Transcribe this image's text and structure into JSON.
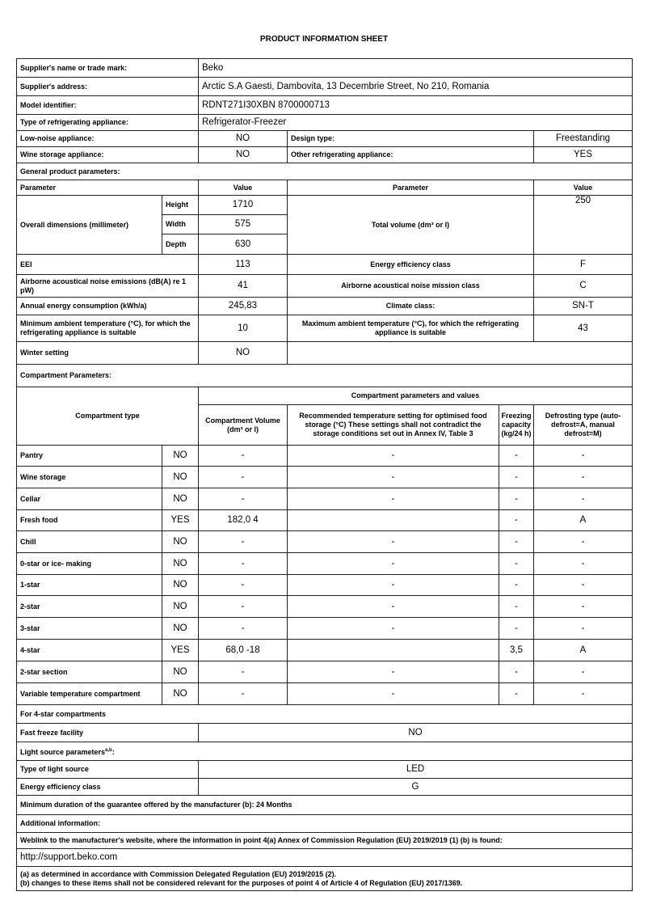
{
  "title": "PRODUCT INFORMATION SHEET",
  "supplier_name": {
    "label": "Supplier's name or trade mark:",
    "value": "Beko"
  },
  "supplier_address": {
    "label": "Supplier's address:",
    "value": "Arctic S.A  Gaesti, Dambovita, 13 Decembrie Street, No 210, Romania"
  },
  "model": {
    "label": "Model identifier:",
    "value": "RDNT271I30XBN 8700000713"
  },
  "appliance_type": {
    "label": "Type of refrigerating appliance:",
    "value": "Refrigerator-Freezer"
  },
  "low_noise": {
    "label": "Low-noise appliance:",
    "value": "NO"
  },
  "design_type": {
    "label": "Design type:",
    "value": "Freestanding"
  },
  "wine_storage": {
    "label": "Wine storage appliance:",
    "value": "NO"
  },
  "other_appliance": {
    "label": "Other refrigerating appliance:",
    "value": "YES"
  },
  "general_header": "General product parameters:",
  "param_header": {
    "parameter": "Parameter",
    "value": "Value"
  },
  "dimensions": {
    "label": "Overall dimensions (millimeter)",
    "height_label": "Height",
    "height": "1710",
    "width_label": "Width",
    "width": "575",
    "depth_label": "Depth",
    "depth": "630"
  },
  "total_volume": {
    "label": "Total volume (dm³ or l)",
    "value": "250"
  },
  "eei": {
    "label": "EEI",
    "value": "113"
  },
  "energy_class": {
    "label": "Energy efficiency class",
    "value": "F"
  },
  "noise": {
    "label": "Airborne acoustical noise emissions (dB(A) re 1 pW)",
    "value": "41"
  },
  "noise_class": {
    "label": "Airborne acoustical noise mission class",
    "value": "C"
  },
  "annual_energy": {
    "label": "Annual energy consumption (kWh/a)",
    "value": "245,83"
  },
  "climate_class": {
    "label": "Climate class:",
    "value": "SN-T"
  },
  "min_temp": {
    "label": "Minimum ambient temperature (°C), for which the refrigerating appliance is suitable",
    "value": "10"
  },
  "max_temp": {
    "label": "Maximum ambient temperature (°C), for which the refrigerating appliance is suitable",
    "value": "43"
  },
  "winter": {
    "label": "Winter setting",
    "value": "NO"
  },
  "compartment_header": "Compartment Parameters:",
  "compartment_cols": {
    "type": "Compartment type",
    "group": "Compartment parameters and values",
    "volume": "Compartment Volume (dm³ or l)",
    "temp": "Recommended temperature setting for optimised food storage (°C) These settings shall not contradict the storage conditions set out in Annex IV, Table 3",
    "freezing": "Freezing capacity (kg/24 h)",
    "defrost": "Defrosting type (auto-defrost=A, manual defrost=M)"
  },
  "compartments": [
    {
      "name": "Pantry",
      "present": "NO",
      "volume": "-",
      "temp": "-",
      "freezing": "-",
      "defrost": "-"
    },
    {
      "name": "Wine storage",
      "present": "NO",
      "volume": "-",
      "temp": "-",
      "freezing": "-",
      "defrost": "-"
    },
    {
      "name": "Cellar",
      "present": "NO",
      "volume": "-",
      "temp": "-",
      "freezing": "-",
      "defrost": "-"
    },
    {
      "name": "Fresh food",
      "present": "YES",
      "volume": "182,0 4",
      "temp": "",
      "freezing": "-",
      "defrost": "A"
    },
    {
      "name": "Chill",
      "present": "NO",
      "volume": "-",
      "temp": "-",
      "freezing": "-",
      "defrost": "-"
    },
    {
      "name": "0-star or ice- making",
      "present": "NO",
      "volume": "-",
      "temp": "-",
      "freezing": "-",
      "defrost": "-"
    },
    {
      "name": "1-star",
      "present": "NO",
      "volume": "-",
      "temp": "-",
      "freezing": "-",
      "defrost": "-"
    },
    {
      "name": "2-star",
      "present": "NO",
      "volume": "-",
      "temp": "-",
      "freezing": "-",
      "defrost": "-"
    },
    {
      "name": "3-star",
      "present": "NO",
      "volume": "-",
      "temp": "-",
      "freezing": "-",
      "defrost": "-"
    },
    {
      "name": "4-star",
      "present": "YES",
      "volume": "68,0 -18",
      "temp": "",
      "freezing": "3,5",
      "defrost": "A"
    },
    {
      "name": "2-star section",
      "present": "NO",
      "volume": "-",
      "temp": "-",
      "freezing": "-",
      "defrost": "-"
    },
    {
      "name": "Variable temperature compartment",
      "present": "NO",
      "volume": "-",
      "temp": "-",
      "freezing": "-",
      "defrost": "-"
    }
  ],
  "four_star_header": "For 4-star compartments",
  "fast_freeze": {
    "label": "Fast freeze facility",
    "value": "NO"
  },
  "light_header": {
    "label": "Light source parameters",
    "sup": "a,b",
    "suffix": ":"
  },
  "light_type": {
    "label": "Type of light source",
    "value": "LED"
  },
  "light_class": {
    "label": "Energy efficiency class",
    "value": "G"
  },
  "guarantee": "Minimum duration of the guarantee offered by the manufacturer (b): 24 Months",
  "additional": "Additional information:",
  "weblink_label": "Weblink to the manufacturer's website, where the information in point 4(a) Annex of Commission  Regulation (EU) 2019/2019  (1) (b) is found:",
  "url": "http://support.beko.com",
  "footnote_a": "(a) as determined in accordance with Commission Delegated Regulation (EU) 2019/2015 (2).",
  "footnote_b": "(b) changes to these items shall not be considered relevant for the purposes of point 4 of Article 4 of Regulation (EU) 2017/1369."
}
